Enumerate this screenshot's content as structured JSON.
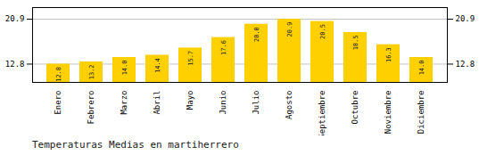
{
  "chart_data": {
    "type": "bar",
    "title": "Temperaturas Medias en martiherrero",
    "categories": [
      "Enero",
      "Febrero",
      "Marzo",
      "Abril",
      "Mayo",
      "Junio",
      "Julio",
      "Agosto",
      "Septiembre",
      "Octubre",
      "Noviembre",
      "Diciembre"
    ],
    "values": [
      12.8,
      13.2,
      14.0,
      14.4,
      15.7,
      17.6,
      20.0,
      20.9,
      20.5,
      18.5,
      16.3,
      14.0
    ],
    "value_labels": [
      "12.8",
      "13.2",
      "14.0",
      "14.4",
      "15.7",
      "17.6",
      "20.0",
      "20.9",
      "20.5",
      "18.5",
      "16.3",
      "14.0"
    ],
    "color": "#FFD000",
    "ylim": [
      9.5,
      23.0
    ],
    "yticks": [
      12.8,
      20.9
    ],
    "grid": true,
    "data_labels": true
  }
}
